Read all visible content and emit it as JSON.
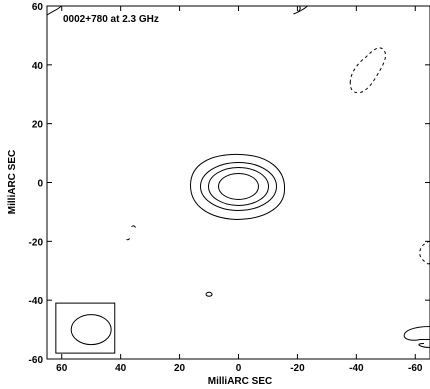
{
  "chart_data": {
    "type": "contour",
    "title": "0002+780 at 2.3 GHz",
    "xlabel": "MilliARC SEC",
    "ylabel": "MilliARC SEC",
    "xlim": [
      65,
      -65
    ],
    "ylim": [
      -60,
      60
    ],
    "x_ticks": [
      60,
      40,
      20,
      0,
      -20,
      -40,
      -60
    ],
    "y_ticks": [
      60,
      40,
      20,
      0,
      -20,
      -40,
      -60
    ],
    "x_tick_labels": [
      "60",
      "40",
      "20",
      "0",
      "-20",
      "-40",
      "-60"
    ],
    "y_tick_labels": [
      "60",
      "40",
      "20",
      "0",
      "-20",
      "-40",
      "-60"
    ],
    "grid": false,
    "core": {
      "x": 0,
      "y": -1,
      "contour_levels": 4
    },
    "beam": {
      "x": 50,
      "y": -50,
      "major_axis": 14,
      "minor_axis": 10,
      "position_angle": 90
    },
    "features": [
      {
        "label": "negative contour",
        "x": -42,
        "y": 38,
        "style": "dashed"
      },
      {
        "label": "small contour",
        "x": 10,
        "y": -38,
        "style": "solid"
      },
      {
        "label": "small contour",
        "x": 36,
        "y": -18,
        "style": "solid"
      },
      {
        "label": "edge contour",
        "x": -63,
        "y": -52,
        "style": "solid"
      },
      {
        "label": "edge contour",
        "x": -63,
        "y": -24,
        "style": "dashed"
      },
      {
        "label": "edge contour",
        "x": -20,
        "y": 60,
        "style": "solid"
      }
    ],
    "colors": {
      "line": "#000000",
      "background": "#ffffff"
    }
  }
}
